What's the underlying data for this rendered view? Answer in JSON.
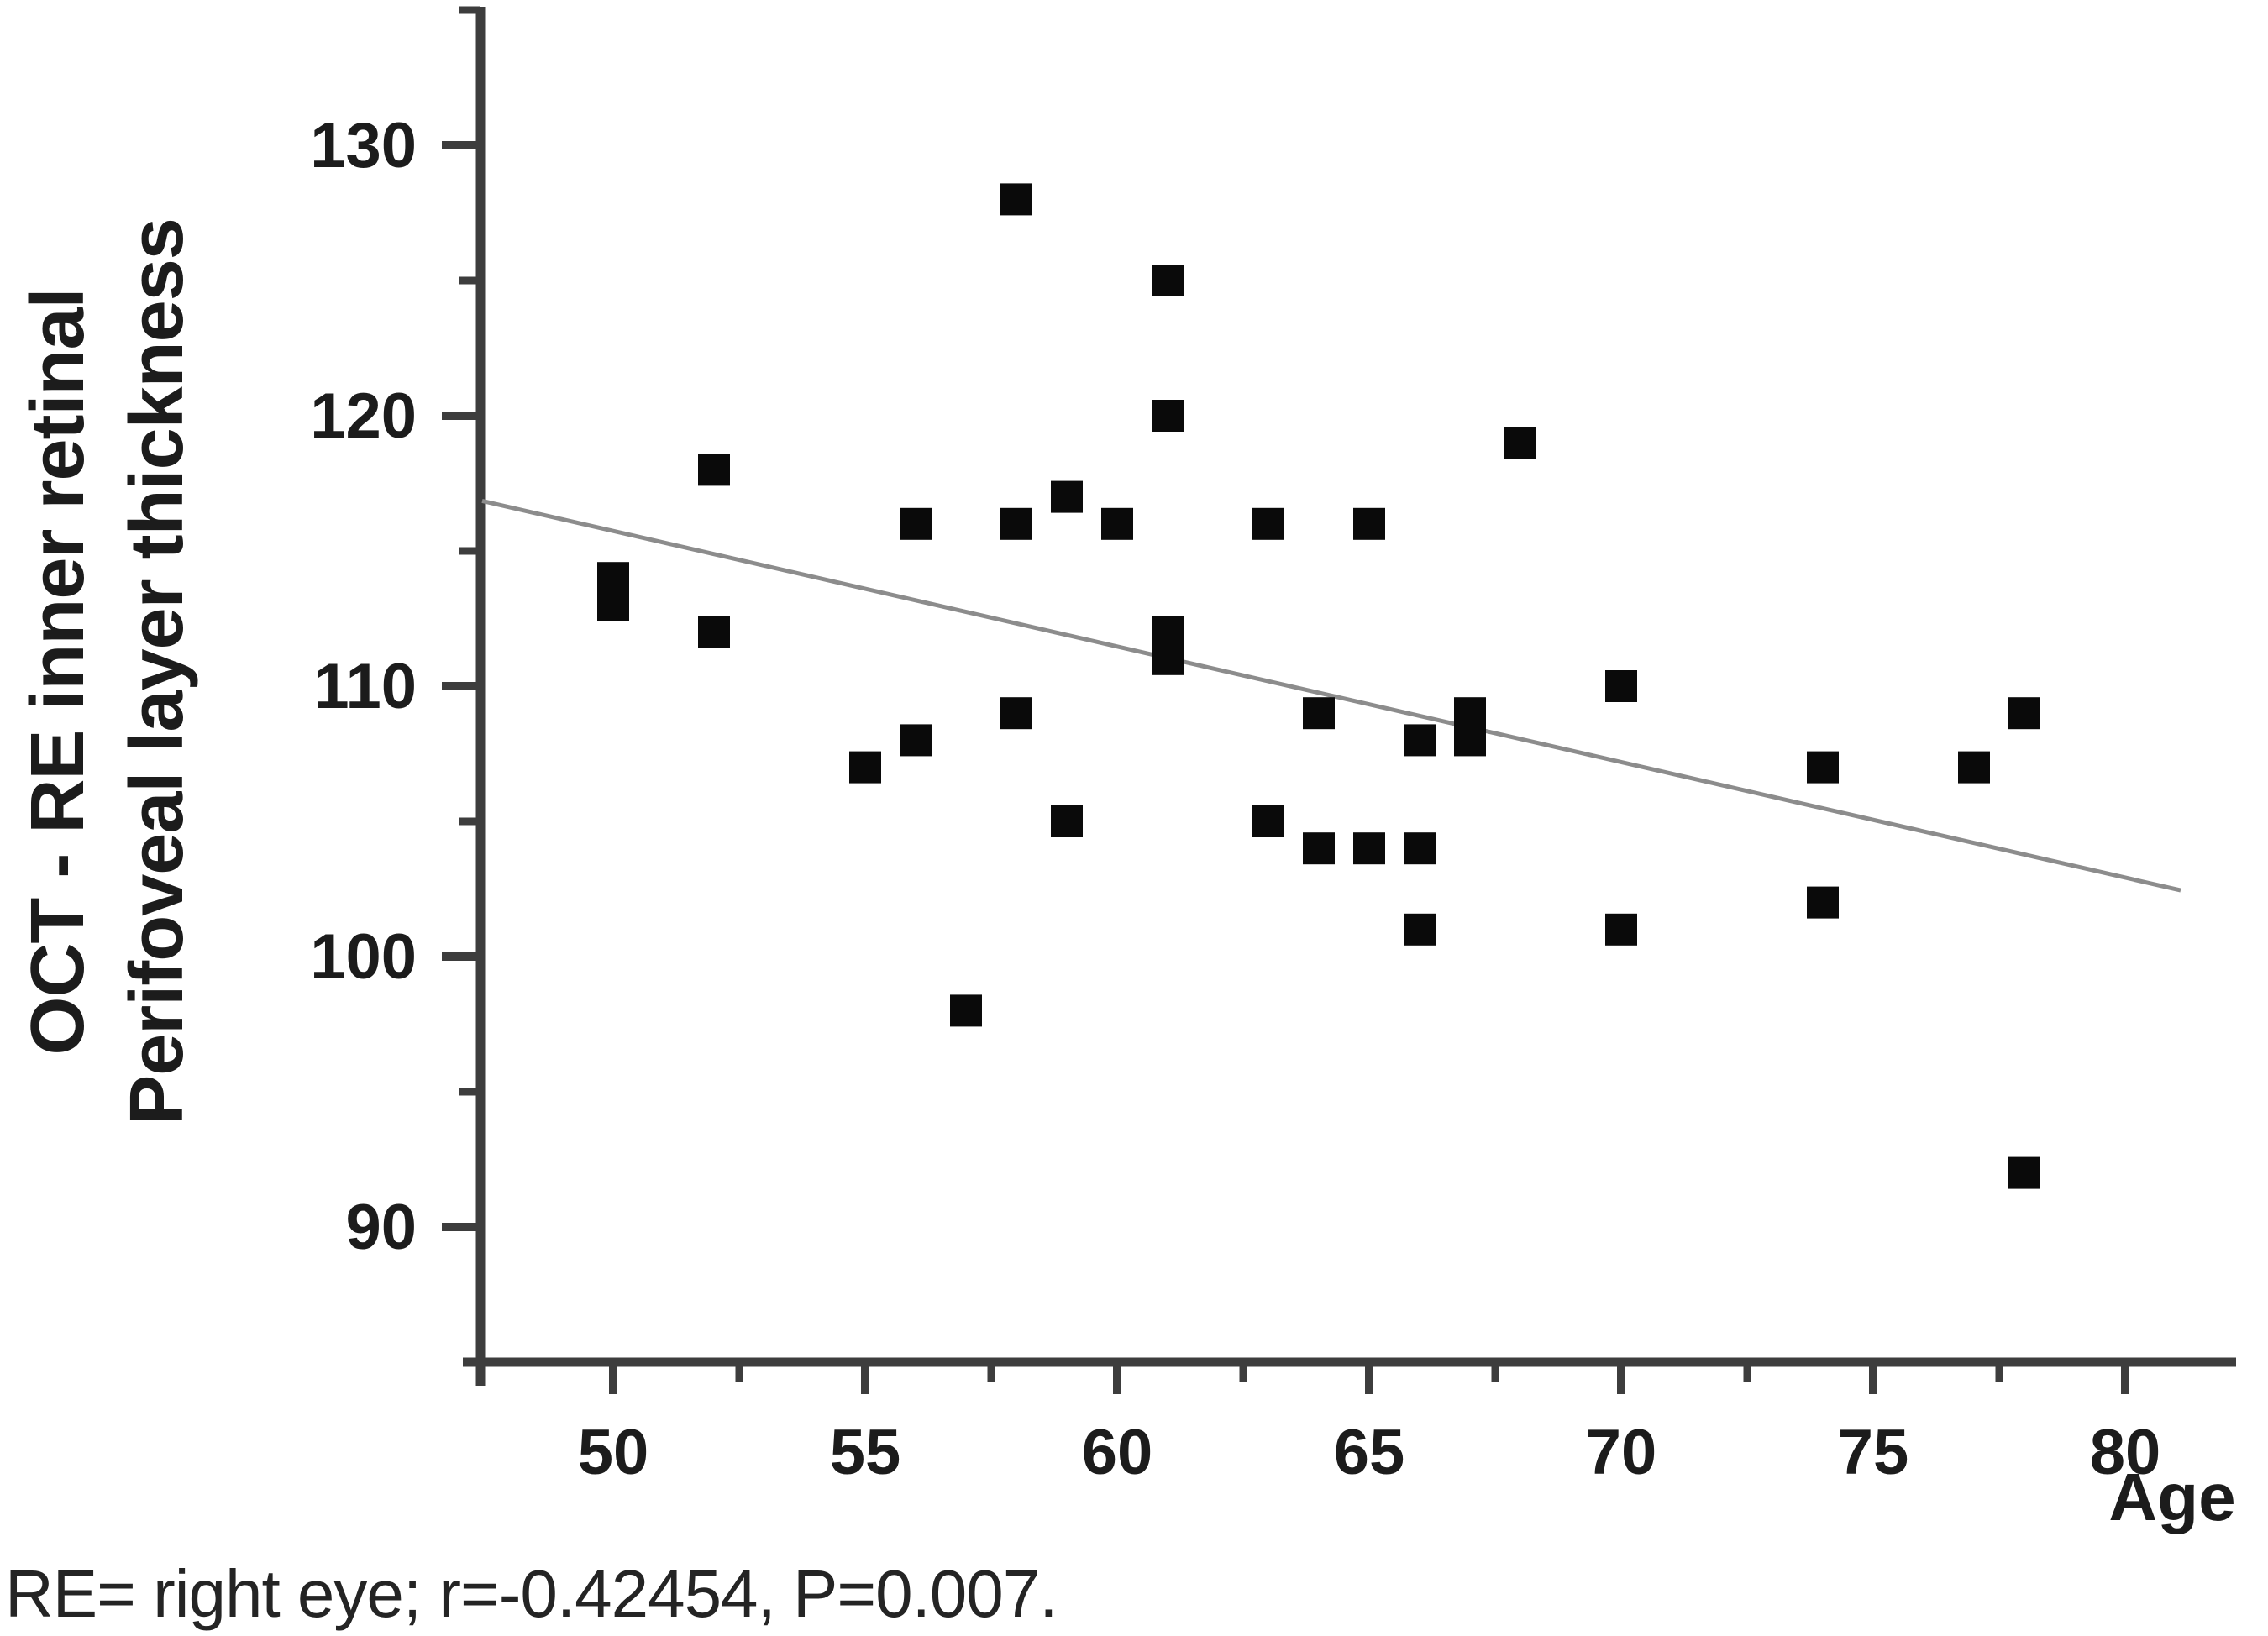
{
  "figure": {
    "background": "#ffffff",
    "footnote": "RE= right eye; r=-0.42454, P=0.007."
  },
  "chart_data": {
    "type": "scatter",
    "title": "",
    "xlabel": "Age",
    "ylabel_line1": "OCT - RE inner retinal",
    "ylabel_line2": "Perifoveal layer thickness",
    "x_ticks": [
      50,
      55,
      60,
      65,
      70,
      75,
      80
    ],
    "x_minor_ticks": [
      52.5,
      57.5,
      62.5,
      67.5,
      72.5,
      77.5
    ],
    "y_ticks": [
      130,
      120,
      110,
      100,
      90
    ],
    "y_minor_ticks": [
      135,
      125,
      115,
      105,
      95
    ],
    "xlim": [
      47.4,
      82.2
    ],
    "ylim": [
      85,
      135.3
    ],
    "grid": false,
    "legend": "none",
    "marker": "filled-square",
    "marker_color": "#0a0a0a",
    "axis_color": "#3d3d3d",
    "text_color": "#1c1c1c",
    "points": [
      [
        50,
        114
      ],
      [
        50,
        113
      ],
      [
        52,
        118
      ],
      [
        52,
        112
      ],
      [
        55,
        107
      ],
      [
        56,
        116
      ],
      [
        56,
        108
      ],
      [
        57,
        98
      ],
      [
        58,
        128
      ],
      [
        58,
        116
      ],
      [
        58,
        109
      ],
      [
        59,
        117
      ],
      [
        59,
        105
      ],
      [
        60,
        116
      ],
      [
        61,
        125
      ],
      [
        61,
        120
      ],
      [
        61,
        112
      ],
      [
        61,
        111
      ],
      [
        63,
        116
      ],
      [
        63,
        105
      ],
      [
        64,
        109
      ],
      [
        64,
        104
      ],
      [
        65,
        116
      ],
      [
        65,
        104
      ],
      [
        66,
        108
      ],
      [
        66,
        104
      ],
      [
        66,
        101
      ],
      [
        67,
        109
      ],
      [
        67,
        108
      ],
      [
        68,
        119
      ],
      [
        70,
        110
      ],
      [
        70,
        101
      ],
      [
        74,
        107
      ],
      [
        74,
        102
      ],
      [
        77,
        107
      ],
      [
        78,
        109
      ],
      [
        78,
        92
      ]
    ],
    "trend_line": {
      "x1": 47.4,
      "y1": 116.85,
      "x2": 81.1,
      "y2": 102.45,
      "color": "#8c8c8c"
    },
    "stats": {
      "r": "-0.42454",
      "P": "0.007"
    }
  }
}
